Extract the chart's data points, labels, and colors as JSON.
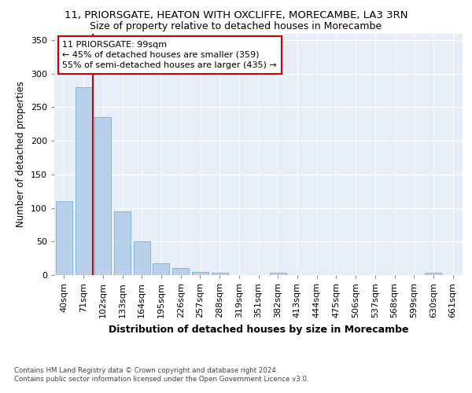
{
  "title1": "11, PRIORSGATE, HEATON WITH OXCLIFFE, MORECAMBE, LA3 3RN",
  "title2": "Size of property relative to detached houses in Morecambe",
  "xlabel": "Distribution of detached houses by size in Morecambe",
  "ylabel": "Number of detached properties",
  "footnote": "Contains HM Land Registry data © Crown copyright and database right 2024.\nContains public sector information licensed under the Open Government Licence v3.0.",
  "categories": [
    "40sqm",
    "71sqm",
    "102sqm",
    "133sqm",
    "164sqm",
    "195sqm",
    "226sqm",
    "257sqm",
    "288sqm",
    "319sqm",
    "351sqm",
    "382sqm",
    "413sqm",
    "444sqm",
    "475sqm",
    "506sqm",
    "537sqm",
    "568sqm",
    "599sqm",
    "630sqm",
    "661sqm"
  ],
  "values": [
    110,
    280,
    235,
    95,
    50,
    18,
    11,
    5,
    4,
    0,
    0,
    4,
    0,
    0,
    0,
    0,
    0,
    0,
    0,
    4,
    0
  ],
  "bar_color": "#b8d0ea",
  "bar_edge_color": "#7aaed6",
  "highlight_line_color": "#cc0000",
  "annotation_text": "11 PRIORSGATE: 99sqm\n← 45% of detached houses are smaller (359)\n55% of semi-detached houses are larger (435) →",
  "annotation_box_color": "#ffffff",
  "annotation_box_edge": "#cc0000",
  "ylim": [
    0,
    360
  ],
  "yticks": [
    0,
    50,
    100,
    150,
    200,
    250,
    300,
    350
  ],
  "background_color": "#e8eef8",
  "grid_color": "#ffffff",
  "title1_fontsize": 9.5,
  "title2_fontsize": 9,
  "tick_fontsize": 8,
  "xlabel_fontsize": 9,
  "ylabel_fontsize": 8.5
}
